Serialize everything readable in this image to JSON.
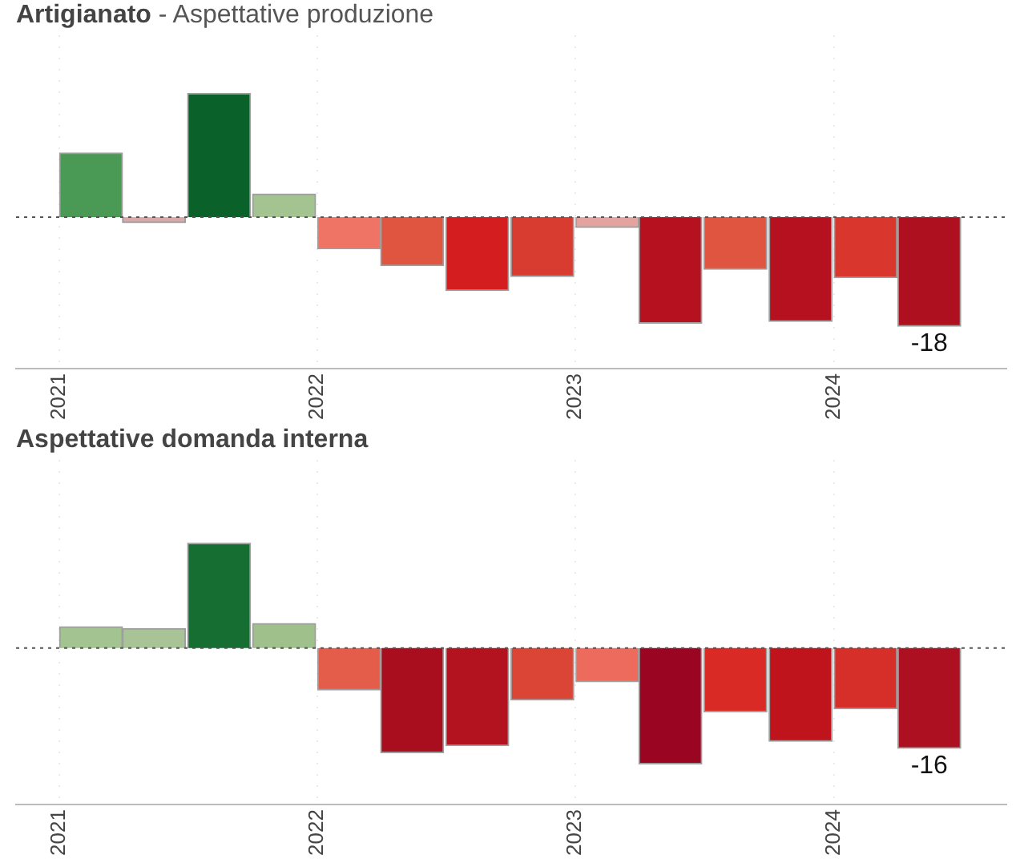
{
  "chart_data": [
    {
      "type": "bar",
      "title": "Artigianato",
      "subtitle": "- Aspettative produzione",
      "x": [
        "2021-02-15",
        "2021-05-15",
        "2021-08-15",
        "2021-11-15",
        "2022-02-15",
        "2022-05-15",
        "2022-08-15",
        "2022-11-15",
        "2023-02-15",
        "2023-05-15",
        "2023-08-15",
        "2023-11-15",
        "2024-02-15",
        "2024-05-15"
      ],
      "values": [
        10.6,
        -0.9,
        20.4,
        3.8,
        -5.2,
        -8.0,
        -12.1,
        -9.8,
        -1.7,
        -17.5,
        -8.6,
        -17.2,
        -10.0,
        -18
      ],
      "colors": [
        "#4a9a55",
        "#d9a8a8",
        "#0a6129",
        "#a3c490",
        "#f07466",
        "#e05540",
        "#d41d1e",
        "#d83b30",
        "#e3a39f",
        "#b5111f",
        "#e05540",
        "#b5111f",
        "#d9362d",
        "#ae1020"
      ],
      "value_labels": [
        null,
        null,
        null,
        null,
        null,
        null,
        null,
        null,
        null,
        null,
        null,
        null,
        null,
        "-18"
      ],
      "xlim": [
        "2020-11",
        "2024-09"
      ],
      "xticks": [
        {
          "value": "2021-01",
          "label": "2021"
        },
        {
          "value": "2022-01",
          "label": "2022"
        },
        {
          "value": "2023-01",
          "label": "2023"
        },
        {
          "value": "2024-01",
          "label": "2024"
        }
      ],
      "ylim": [
        -25,
        30
      ],
      "ref_lines": [
        {
          "axis": "y",
          "value": 0,
          "color": "#555555",
          "line_style": "dotted"
        }
      ],
      "grid": "x",
      "legend": false,
      "tick_labels": "x"
    },
    {
      "type": "bar",
      "title": "Aspettative domanda interna",
      "x": [
        "2021-02-15",
        "2021-05-15",
        "2021-08-15",
        "2021-11-15",
        "2022-02-15",
        "2022-05-15",
        "2022-08-15",
        "2022-11-15",
        "2023-02-15",
        "2023-05-15",
        "2023-08-15",
        "2023-11-15",
        "2024-02-15",
        "2024-05-15"
      ],
      "values": [
        3.4,
        3.1,
        16.7,
        3.9,
        -6.7,
        -16.7,
        -15.6,
        -8.3,
        -5.4,
        -18.5,
        -10.2,
        -14.9,
        -9.7,
        -16
      ],
      "colors": [
        "#a3c490",
        "#a8c497",
        "#166e33",
        "#9fc08a",
        "#e45c4a",
        "#a80e1e",
        "#b3121f",
        "#db4535",
        "#ed6b5d",
        "#9a0522",
        "#d92a26",
        "#c0141c",
        "#d62e29",
        "#ad1121"
      ],
      "value_labels": [
        null,
        null,
        null,
        null,
        null,
        null,
        null,
        null,
        null,
        null,
        null,
        null,
        null,
        "-16"
      ],
      "xlim": [
        "2020-11",
        "2024-09"
      ],
      "xticks": [
        {
          "value": "2021-01",
          "label": "2021"
        },
        {
          "value": "2022-01",
          "label": "2022"
        },
        {
          "value": "2023-01",
          "label": "2023"
        },
        {
          "value": "2024-01",
          "label": "2024"
        }
      ],
      "ylim": [
        -25,
        30
      ],
      "ref_lines": [
        {
          "axis": "y",
          "value": 0,
          "color": "#555555",
          "line_style": "dotted"
        }
      ],
      "grid": "x",
      "legend": false,
      "tick_labels": "x"
    }
  ]
}
